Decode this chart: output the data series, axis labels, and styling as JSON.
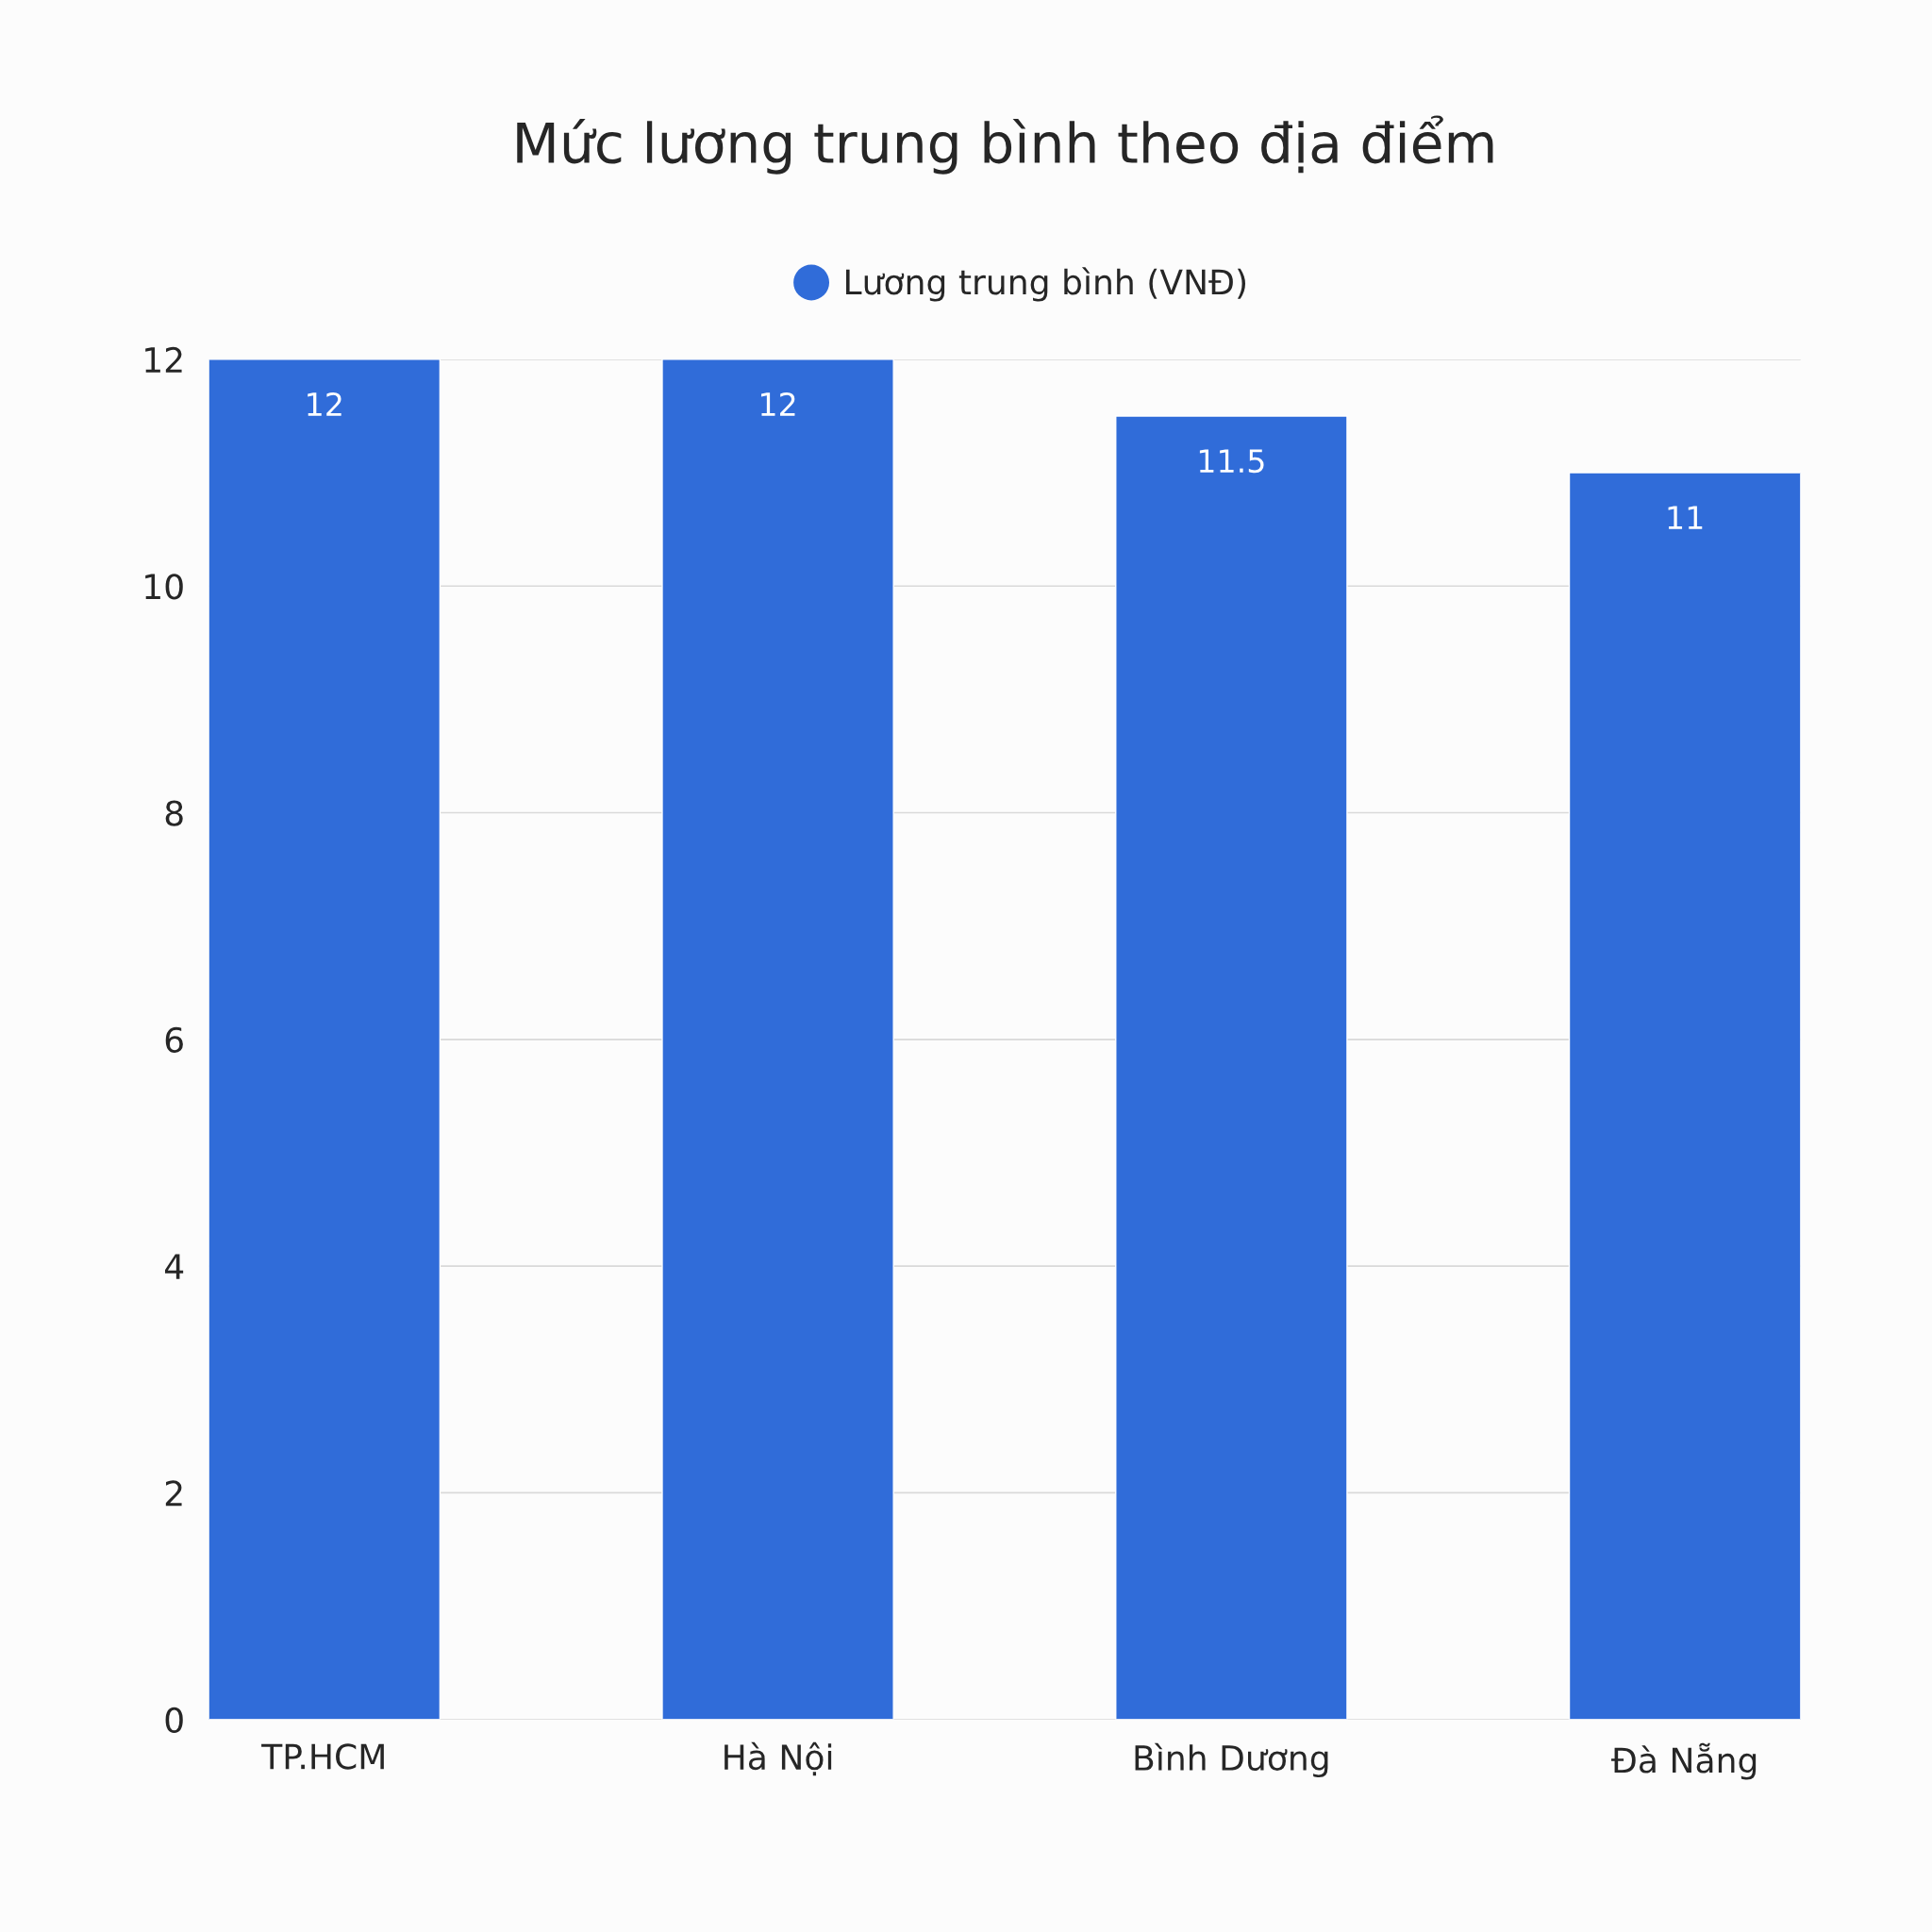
{
  "chart_data": {
    "type": "bar",
    "title": "Mức lương trung bình theo địa điểm",
    "categories": [
      "TP.HCM",
      "Hà Nội",
      "Bình Dương",
      "Đà Nẵng"
    ],
    "series": [
      {
        "name": "Lương trung bình (VNĐ)",
        "color": "#306cd9",
        "values": [
          12,
          12,
          11.5,
          11
        ]
      }
    ],
    "ylim": [
      0,
      12
    ],
    "yticks": [
      0,
      2,
      4,
      6,
      8,
      10,
      12
    ],
    "grid": "y",
    "legend": "top",
    "marker": "circle",
    "data_labels": true
  }
}
